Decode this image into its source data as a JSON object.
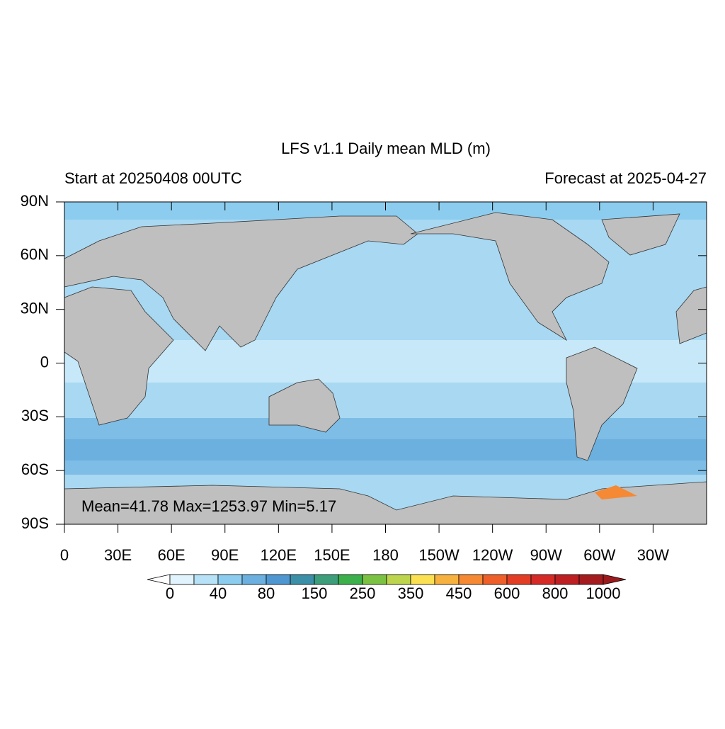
{
  "title": "LFS v1.1 Daily mean MLD (m)",
  "subtitle_left": "Start at 20250408 00UTC",
  "subtitle_right": "Forecast at 2025-04-27",
  "annotation": "Mean=41.78  Max=1253.97  Min=5.17",
  "lon_axis": {
    "xlim": [
      0,
      360
    ],
    "xticks": [
      0,
      {
        "value": 30,
        "label": "30E"
      },
      {
        "value": 60,
        "label": "60E"
      },
      {
        "value": 90,
        "label": "90E"
      },
      {
        "value": 120,
        "label": "120E"
      },
      {
        "value": 150,
        "label": "150E"
      },
      180,
      {
        "value": 210,
        "label": "150W"
      },
      {
        "value": 240,
        "label": "120W"
      },
      {
        "value": 270,
        "label": "90W"
      },
      {
        "value": 300,
        "label": "60W"
      },
      {
        "value": 330,
        "label": "30W"
      }
    ]
  },
  "lat_axis": {
    "ylim": [
      -90,
      90
    ],
    "yticks": [
      {
        "value": 90,
        "label": "90N"
      },
      {
        "value": 60,
        "label": "60N"
      },
      {
        "value": 30,
        "label": "30N"
      },
      0,
      {
        "value": -30,
        "label": "30S"
      },
      {
        "value": -60,
        "label": "60S"
      },
      {
        "value": -90,
        "label": "90S"
      }
    ]
  },
  "colorbar": {
    "ticks": [
      0,
      40,
      80,
      150,
      250,
      350,
      450,
      600,
      800,
      1000
    ],
    "colors": [
      "#ffffff",
      "#e1f3fc",
      "#b6e1f6",
      "#8ccdef",
      "#6bb0df",
      "#4e97d1",
      "#3b8fa6",
      "#3d9e7b",
      "#3bb04b",
      "#7cc242",
      "#bcd54c",
      "#fbe152",
      "#f7b13e",
      "#f58934",
      "#ee5f2a",
      "#e33d26",
      "#d52a26",
      "#bd1f23",
      "#a51c1f",
      "#9a1a1d"
    ]
  }
}
